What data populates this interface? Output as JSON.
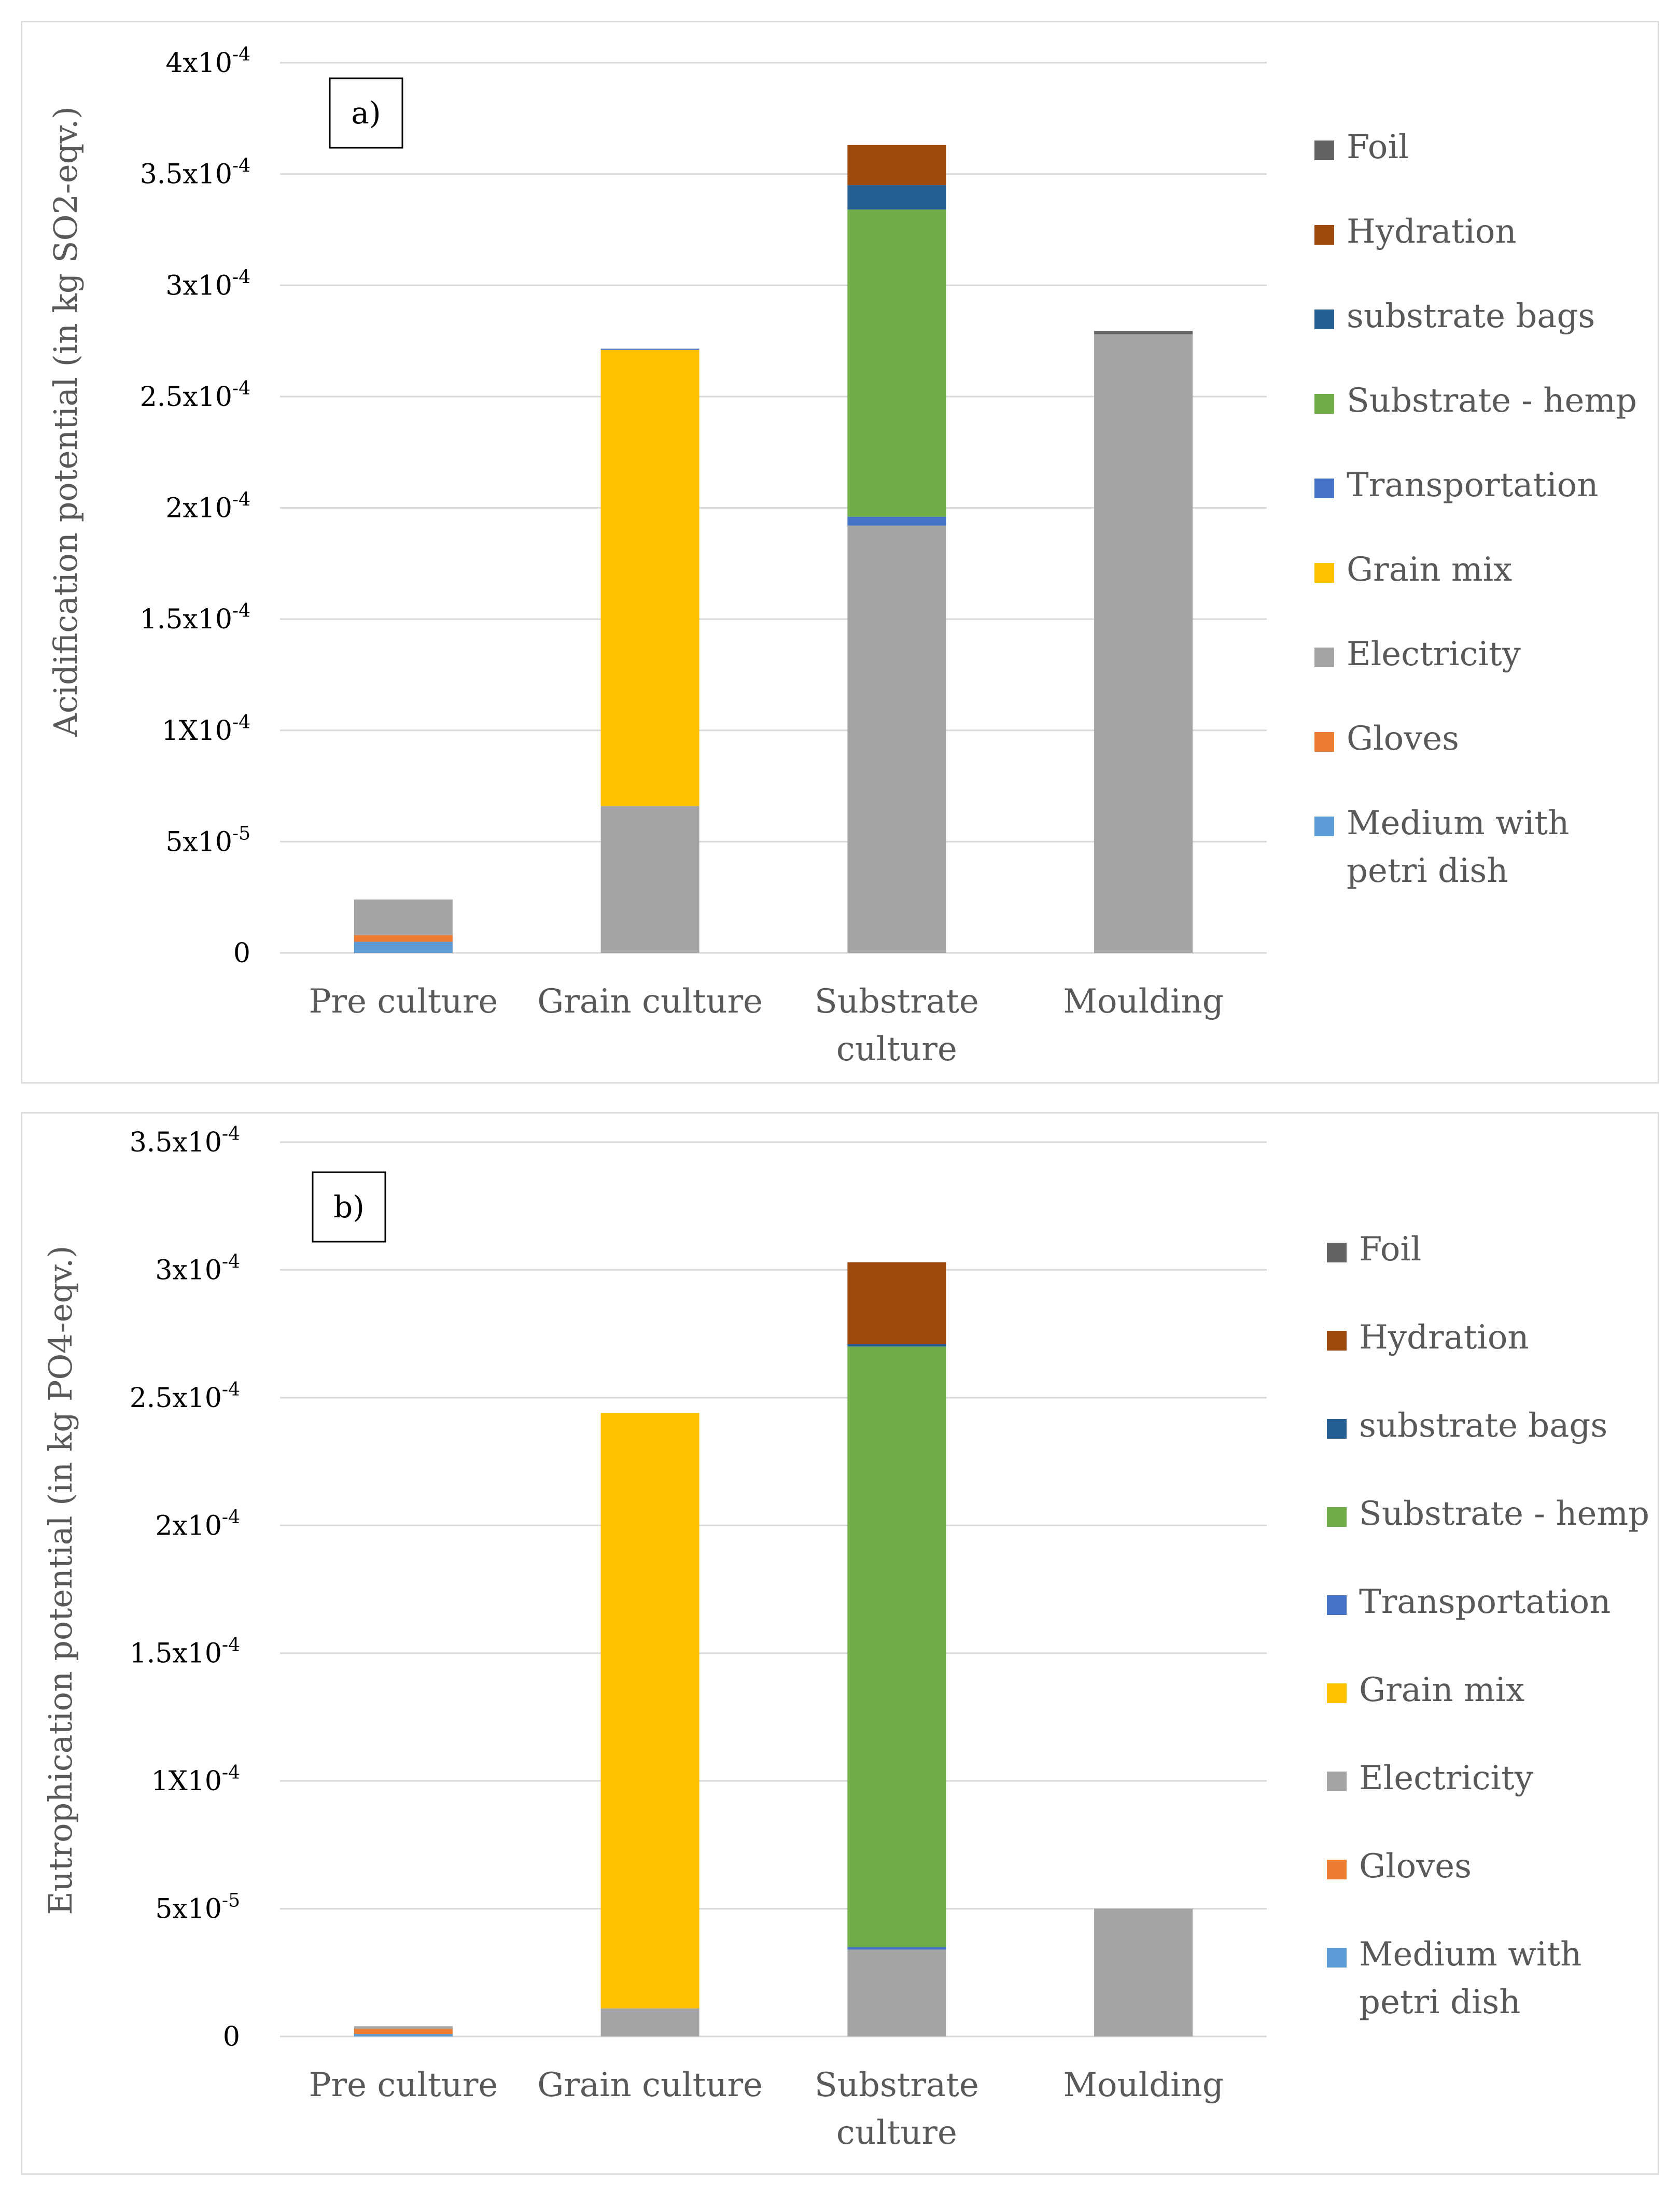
{
  "colors": {
    "Foil": "#636363",
    "Hydration": "#9E480E",
    "substrate bags": "#255E91",
    "Substrate - hemp": "#70AD47",
    "Transportation": "#4472C4",
    "Grain mix": "#FFC000",
    "Electricity": "#A5A5A5",
    "Gloves": "#ED7D31",
    "Medium with petri dish": "#5B9BD5"
  },
  "chart_data": [
    {
      "type": "bar",
      "stacked": true,
      "panel_label": "a)",
      "title": "",
      "ylabel": "Acidification potential (in kg SO2-eqv.)",
      "xlabel": "",
      "ylim": [
        0,
        0.0004
      ],
      "grid": true,
      "legend_position": "right",
      "ytick_values": [
        0,
        5e-05,
        0.0001,
        0.00015,
        0.0002,
        0.00025,
        0.0003,
        0.00035,
        0.0004
      ],
      "ytick_labels": [
        {
          "base": "0",
          "exp": ""
        },
        {
          "base": "5x10",
          "exp": "-5"
        },
        {
          "base": "1X10",
          "exp": "-4"
        },
        {
          "base": "1.5x10",
          "exp": "-4"
        },
        {
          "base": "2x10",
          "exp": "-4"
        },
        {
          "base": "2.5x10",
          "exp": "-4"
        },
        {
          "base": "3x10",
          "exp": "-4"
        },
        {
          "base": "3.5x10",
          "exp": "-4"
        },
        {
          "base": "4x10",
          "exp": "-4"
        }
      ],
      "categories": [
        [
          "Pre culture"
        ],
        [
          "Grain culture"
        ],
        [
          "Substrate",
          "culture"
        ],
        [
          "Moulding"
        ]
      ],
      "legend": [
        {
          "name": "Foil",
          "lines": [
            "Foil"
          ]
        },
        {
          "name": "Hydration",
          "lines": [
            "Hydration"
          ]
        },
        {
          "name": "substrate bags",
          "lines": [
            "substrate bags"
          ]
        },
        {
          "name": "Substrate - hemp",
          "lines": [
            "Substrate - hemp"
          ]
        },
        {
          "name": "Transportation",
          "lines": [
            "Transportation"
          ]
        },
        {
          "name": "Grain mix",
          "lines": [
            "Grain mix"
          ]
        },
        {
          "name": "Electricity",
          "lines": [
            "Electricity"
          ]
        },
        {
          "name": "Gloves",
          "lines": [
            "Gloves"
          ]
        },
        {
          "name": "Medium with petri dish",
          "lines": [
            "Medium with",
            "petri dish"
          ]
        }
      ],
      "series": [
        {
          "name": "Medium with petri dish",
          "values": [
            5e-06,
            0,
            0,
            0
          ]
        },
        {
          "name": "Gloves",
          "values": [
            3e-06,
            0,
            0,
            0
          ]
        },
        {
          "name": "Electricity",
          "values": [
            1.6e-05,
            6.6e-05,
            0.000192,
            0.000278
          ]
        },
        {
          "name": "Grain mix",
          "values": [
            0,
            0.000205,
            0,
            0
          ]
        },
        {
          "name": "Transportation",
          "values": [
            0,
            5e-07,
            4e-06,
            0
          ]
        },
        {
          "name": "Substrate - hemp",
          "values": [
            0,
            0,
            0.000138,
            0
          ]
        },
        {
          "name": "substrate bags",
          "values": [
            0,
            0,
            1.1e-05,
            0
          ]
        },
        {
          "name": "Hydration",
          "values": [
            0,
            0,
            1.8e-05,
            0
          ]
        },
        {
          "name": "Foil",
          "values": [
            0,
            0,
            0,
            1.5e-06
          ]
        }
      ]
    },
    {
      "type": "bar",
      "stacked": true,
      "panel_label": "b)",
      "title": "",
      "ylabel": "Eutrophication potential (in kg PO4-eqv.)",
      "xlabel": "",
      "ylim": [
        0,
        0.00035
      ],
      "grid": true,
      "legend_position": "right",
      "ytick_values": [
        0,
        5e-05,
        0.0001,
        0.00015,
        0.0002,
        0.00025,
        0.0003,
        0.00035
      ],
      "ytick_labels": [
        {
          "base": "0",
          "exp": ""
        },
        {
          "base": "5x10",
          "exp": "-5"
        },
        {
          "base": "1X10",
          "exp": "-4"
        },
        {
          "base": "1.5x10",
          "exp": "-4"
        },
        {
          "base": "2x10",
          "exp": "-4"
        },
        {
          "base": "2.5x10",
          "exp": "-4"
        },
        {
          "base": "3x10",
          "exp": "-4"
        },
        {
          "base": "3.5x10",
          "exp": "-4"
        }
      ],
      "categories": [
        [
          "Pre culture"
        ],
        [
          "Grain culture"
        ],
        [
          "Substrate",
          "culture"
        ],
        [
          "Moulding"
        ]
      ],
      "legend": [
        {
          "name": "Foil",
          "lines": [
            "Foil"
          ]
        },
        {
          "name": "Hydration",
          "lines": [
            "Hydration"
          ]
        },
        {
          "name": "substrate bags",
          "lines": [
            "substrate bags"
          ]
        },
        {
          "name": "Substrate - hemp",
          "lines": [
            "Substrate - hemp"
          ]
        },
        {
          "name": "Transportation",
          "lines": [
            "Transportation"
          ]
        },
        {
          "name": "Grain mix",
          "lines": [
            "Grain mix"
          ]
        },
        {
          "name": "Electricity",
          "lines": [
            "Electricity"
          ]
        },
        {
          "name": "Gloves",
          "lines": [
            "Gloves"
          ]
        },
        {
          "name": "Medium with petri dish",
          "lines": [
            "Medium with",
            "petri dish"
          ]
        }
      ],
      "series": [
        {
          "name": "Medium with petri dish",
          "values": [
            1e-06,
            0,
            0,
            0
          ]
        },
        {
          "name": "Gloves",
          "values": [
            2e-06,
            0,
            0,
            0
          ]
        },
        {
          "name": "Electricity",
          "values": [
            1e-06,
            1.1e-05,
            3.4e-05,
            5e-05
          ]
        },
        {
          "name": "Grain mix",
          "values": [
            0,
            0.000233,
            0,
            0
          ]
        },
        {
          "name": "Transportation",
          "values": [
            0,
            0,
            1e-06,
            0
          ]
        },
        {
          "name": "Substrate - hemp",
          "values": [
            0,
            0,
            0.000235,
            0
          ]
        },
        {
          "name": "substrate bags",
          "values": [
            0,
            0,
            1e-06,
            0
          ]
        },
        {
          "name": "Hydration",
          "values": [
            0,
            0,
            3.2e-05,
            0
          ]
        },
        {
          "name": "Foil",
          "values": [
            0,
            0,
            0,
            0
          ]
        }
      ]
    }
  ]
}
